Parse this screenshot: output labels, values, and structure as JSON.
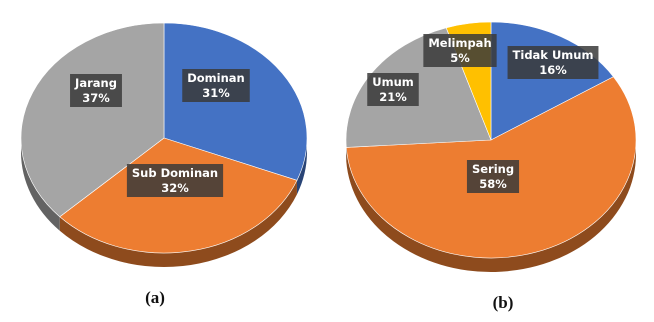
{
  "chart_data": [
    {
      "type": "pie",
      "caption": "(a)",
      "slices": [
        {
          "label": "Dominan",
          "value": 31,
          "display": "31%",
          "color": "#4472C4"
        },
        {
          "label": "Sub Dominan",
          "value": 32,
          "display": "32%",
          "color": "#ED7D31"
        },
        {
          "label": "Jarang",
          "value": 37,
          "display": "37%",
          "color": "#A5A5A5"
        }
      ]
    },
    {
      "type": "pie",
      "caption": "(b)",
      "slices": [
        {
          "label": "Tidak Umum",
          "value": 16,
          "display": "16%",
          "color": "#4472C4"
        },
        {
          "label": "Sering",
          "value": 58,
          "display": "58%",
          "color": "#ED7D31"
        },
        {
          "label": "Umum",
          "value": 21,
          "display": "21%",
          "color": "#A5A5A5"
        },
        {
          "label": "Melimpah",
          "value": 5,
          "display": "5%",
          "color": "#FFC000"
        }
      ]
    }
  ]
}
